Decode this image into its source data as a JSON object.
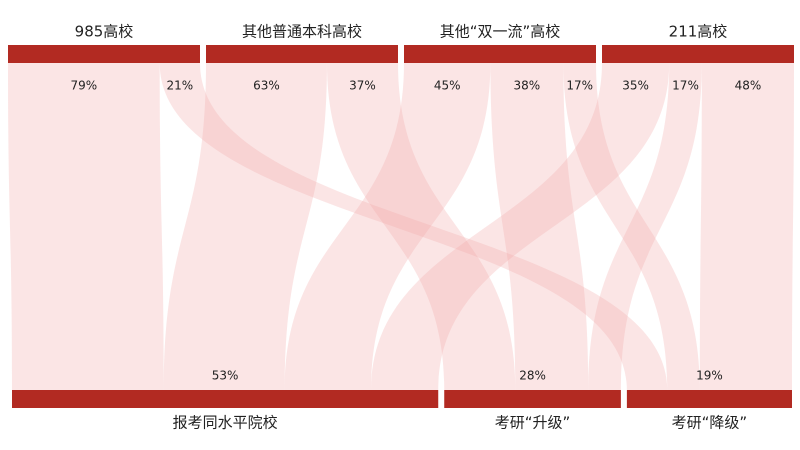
{
  "chart_data": {
    "type": "sankey",
    "targets": [
      "报考同水平院校",
      "考研“升级”",
      "考研“降级”"
    ],
    "target_values": [
      53,
      28,
      19
    ],
    "target_value_labels": [
      "53%",
      "28%",
      "19%"
    ],
    "series": [
      {
        "name": "985高校",
        "values": [
          79,
          null,
          21
        ],
        "value_labels": [
          "79%",
          null,
          "21%"
        ]
      },
      {
        "name": "其他普通本科高校",
        "values": [
          63,
          37,
          null
        ],
        "value_labels": [
          "63%",
          "37%",
          null
        ]
      },
      {
        "name": "其他“双一流”高校",
        "values": [
          45,
          38,
          17
        ],
        "value_labels": [
          "45%",
          "38%",
          "17%"
        ]
      },
      {
        "name": "211高校",
        "values": [
          35,
          17,
          48
        ],
        "value_labels": [
          "35%",
          "17%",
          "48%"
        ]
      }
    ],
    "node_color": "#b22a22",
    "link_color": "#f2a9a9"
  }
}
